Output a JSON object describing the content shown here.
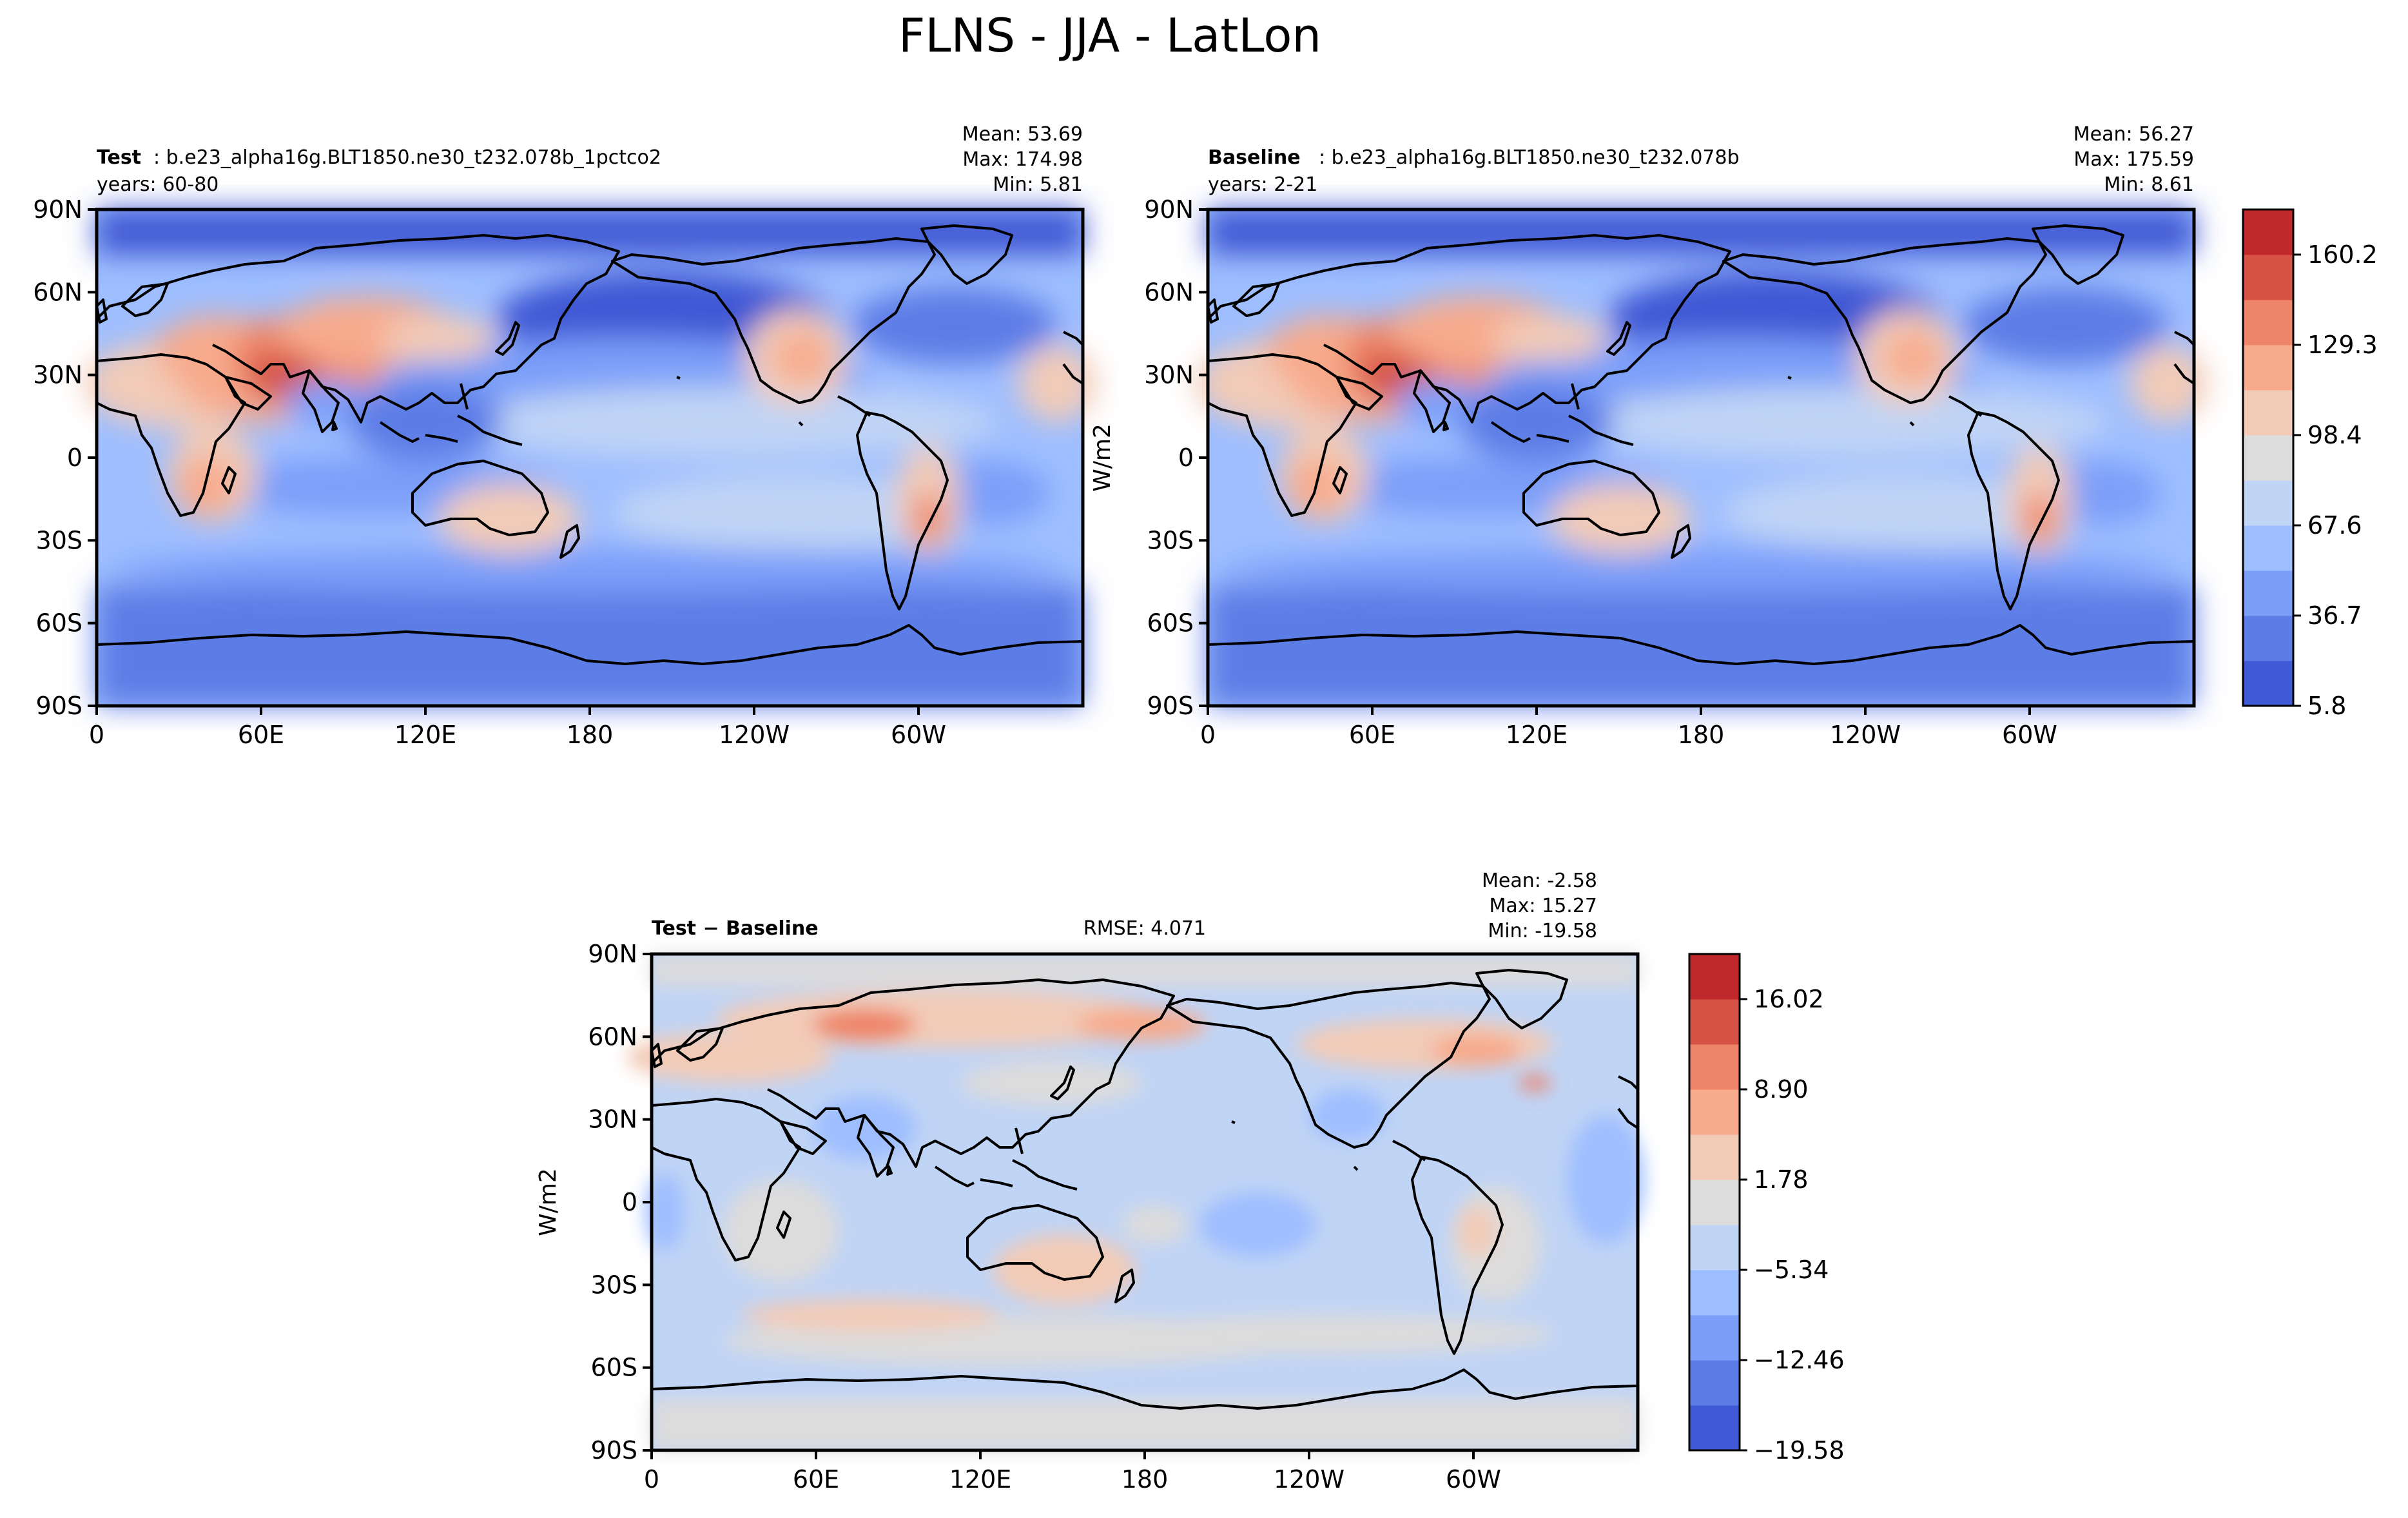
{
  "figure": {
    "title": "FLNS - JJA - LatLon"
  },
  "lat_ticks": [
    "90N",
    "60N",
    "30N",
    "0",
    "30S",
    "60S",
    "90S"
  ],
  "lon_ticks": [
    "0",
    "60E",
    "120E",
    "180",
    "120W",
    "60W"
  ],
  "panels": {
    "test": {
      "label_bold": "Test",
      "label_rest": ": b.e23_alpha16g.BLT1850.ne30_t232.078b_1pctco2",
      "years": "years: 60-80",
      "stats": {
        "mean": "Mean: 53.69",
        "max": "Max: 174.98",
        "min": "Min:  5.81"
      }
    },
    "baseline": {
      "label_bold": "Baseline",
      "label_rest": ": b.e23_alpha16g.BLT1850.ne30_t232.078b",
      "years": "years: 2-21",
      "stats": {
        "mean": "Mean: 56.27",
        "max": "Max: 175.59",
        "min": "Min:  8.61"
      },
      "ylabel": "W/m2"
    },
    "diff": {
      "label": "Test − Baseline",
      "rmse": "RMSE: 4.071",
      "stats": {
        "mean": "Mean: -2.58",
        "max": "Max: 15.27",
        "min": "Min: -19.58"
      },
      "ylabel": "W/m2"
    }
  },
  "colorbars": {
    "main": {
      "ticks": [
        "5.8",
        "36.7",
        "67.6",
        "98.4",
        "129.3",
        "160.2"
      ],
      "colors": [
        "#4059d4",
        "#5d7de6",
        "#7b9ff9",
        "#9ebeff",
        "#c0d4f5",
        "#dddcdc",
        "#f2cbb7",
        "#f7aa8c",
        "#ee8468",
        "#d65244",
        "#c0282c"
      ]
    },
    "diff": {
      "ticks": [
        "−19.58",
        "−12.46",
        "−5.34",
        "1.78",
        "8.90",
        "16.02"
      ],
      "colors": [
        "#4059d4",
        "#5d7de6",
        "#7b9ff9",
        "#9ebeff",
        "#c0d4f5",
        "#dddcdc",
        "#f2cbb7",
        "#f7aa8c",
        "#ee8468",
        "#d65244",
        "#c0282c"
      ]
    }
  },
  "chart_data": [
    {
      "type": "heatmap",
      "title": "Test: b.e23_alpha16g.BLT1850.ne30_t232.078b_1pctco2",
      "ylabel": "",
      "x": [
        "0",
        "60E",
        "120E",
        "180",
        "120W",
        "60W"
      ],
      "y": [
        "90N",
        "60N",
        "30N",
        "0",
        "30S",
        "60S",
        "90S"
      ],
      "mean": 53.69,
      "max": 174.98,
      "min": 5.81,
      "colorbar_range": [
        5.8,
        175.59
      ],
      "colorbar_ticks": [
        5.8,
        36.7,
        67.6,
        98.4,
        129.3,
        160.2
      ]
    },
    {
      "type": "heatmap",
      "title": "Baseline: b.e23_alpha16g.BLT1850.ne30_t232.078b",
      "ylabel": "W/m2",
      "x": [
        "0",
        "60E",
        "120E",
        "180",
        "120W",
        "60W"
      ],
      "y": [
        "90N",
        "60N",
        "30N",
        "0",
        "30S",
        "60S",
        "90S"
      ],
      "mean": 56.27,
      "max": 175.59,
      "min": 8.61,
      "colorbar_range": [
        5.8,
        175.59
      ],
      "colorbar_ticks": [
        5.8,
        36.7,
        67.6,
        98.4,
        129.3,
        160.2
      ]
    },
    {
      "type": "heatmap",
      "title": "Test − Baseline",
      "ylabel": "W/m2",
      "x": [
        "0",
        "60E",
        "120E",
        "180",
        "120W",
        "60W"
      ],
      "y": [
        "90N",
        "60N",
        "30N",
        "0",
        "30S",
        "60S",
        "90S"
      ],
      "mean": -2.58,
      "max": 15.27,
      "min": -19.58,
      "rmse": 4.071,
      "colorbar_range": [
        -19.58,
        19.58
      ],
      "colorbar_ticks": [
        -19.58,
        -12.46,
        -5.34,
        1.78,
        8.9,
        16.02
      ]
    }
  ]
}
